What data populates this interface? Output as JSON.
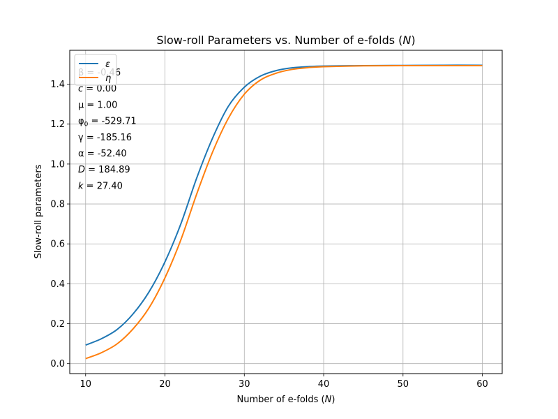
{
  "chart_data": {
    "type": "line",
    "title": "Slow-roll Parameters vs. Number of e-folds (N)",
    "title_prefix": "Slow-roll Parameters vs. Number of e-folds (",
    "title_var": "N",
    "title_suffix": ")",
    "xlabel_prefix": "Number of e-folds (",
    "xlabel_var": "N",
    "xlabel_suffix": ")",
    "ylabel": "Slow-roll parameters",
    "xlim": [
      8,
      62.5
    ],
    "ylim": [
      -0.05,
      1.57
    ],
    "xticks": [
      10,
      20,
      30,
      40,
      50,
      60
    ],
    "yticks": [
      0.0,
      0.2,
      0.4,
      0.6,
      0.8,
      1.0,
      1.2,
      1.4
    ],
    "xtick_labels": [
      "10",
      "20",
      "30",
      "40",
      "50",
      "60"
    ],
    "ytick_labels": [
      "0.0",
      "0.2",
      "0.4",
      "0.6",
      "0.8",
      "1.0",
      "1.2",
      "1.4"
    ],
    "grid": true,
    "legend_placement": "top-left",
    "series": [
      {
        "name": "ε",
        "color": "#1f77b4",
        "x": [
          10,
          12,
          14,
          16,
          18,
          20,
          22,
          24,
          26,
          28,
          30,
          32,
          34,
          36,
          38,
          40,
          45,
          50,
          55,
          60
        ],
        "y": [
          0.093,
          0.125,
          0.172,
          0.25,
          0.36,
          0.51,
          0.7,
          0.93,
          1.13,
          1.29,
          1.385,
          1.44,
          1.468,
          1.482,
          1.488,
          1.491,
          1.493,
          1.494,
          1.495,
          1.495
        ]
      },
      {
        "name": "η",
        "color": "#ff7f0e",
        "x": [
          10,
          12,
          14,
          16,
          18,
          20,
          22,
          24,
          26,
          28,
          30,
          32,
          34,
          36,
          38,
          40,
          45,
          50,
          55,
          60
        ],
        "y": [
          0.025,
          0.055,
          0.1,
          0.175,
          0.28,
          0.43,
          0.62,
          0.85,
          1.06,
          1.23,
          1.35,
          1.42,
          1.455,
          1.474,
          1.483,
          1.488,
          1.492,
          1.493,
          1.493,
          1.493
        ]
      }
    ],
    "parameters": [
      {
        "symbol": "β",
        "sub": "",
        "value": "= -0.46"
      },
      {
        "symbol": "c",
        "sub": "",
        "value": "= 0.00"
      },
      {
        "symbol": "μ",
        "sub": "",
        "value": "= 1.00"
      },
      {
        "symbol": "φ",
        "sub": "0",
        "value": "= -529.71"
      },
      {
        "symbol": "γ",
        "sub": "",
        "value": "= -185.16"
      },
      {
        "symbol": "α",
        "sub": "",
        "value": "= -52.40"
      },
      {
        "symbol": "D",
        "sub": "",
        "value": "= 184.89"
      },
      {
        "symbol": "k",
        "sub": "",
        "value": "= 27.40"
      }
    ]
  }
}
